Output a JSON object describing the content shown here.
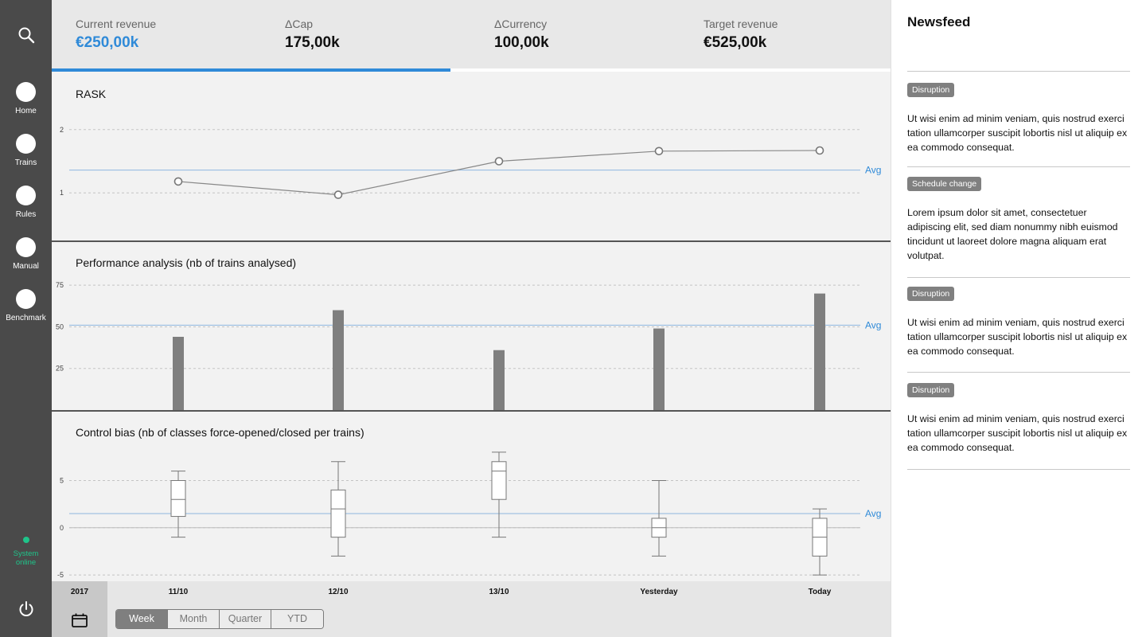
{
  "sidebar": {
    "items": [
      {
        "label": "Home",
        "active": true
      },
      {
        "label": "Trains",
        "active": false
      },
      {
        "label": "Rules",
        "active": false
      },
      {
        "label": "Manual",
        "active": false
      },
      {
        "label": "Benchmark",
        "active": false
      }
    ],
    "status": {
      "line1": "System",
      "line2": "online",
      "color": "#1fc48a"
    }
  },
  "kpis": [
    {
      "label": "Current revenue",
      "value": "€250,00k"
    },
    {
      "label": "ΔCap",
      "value": "175,00k"
    },
    {
      "label": "ΔCurrency",
      "value": "100,00k"
    },
    {
      "label": "Target revenue",
      "value": "€525,00k"
    }
  ],
  "kpi_progress": 0.475,
  "accent_color": "#2f8ad8",
  "chart_data": [
    {
      "type": "line",
      "title": "RASK",
      "categories": [
        "11/10",
        "12/10",
        "13/10",
        "Yesterday",
        "Today"
      ],
      "values": [
        1.18,
        0.97,
        1.5,
        1.66,
        1.67
      ],
      "yticks": [
        1,
        2
      ],
      "ylim": [
        0.65,
        2.35
      ],
      "avg": 1.36,
      "avg_label": "Avg",
      "grid": true
    },
    {
      "type": "bar",
      "title": "Performance analysis (nb of trains analysed)",
      "categories": [
        "11/10",
        "12/10",
        "13/10",
        "Yesterday",
        "Today"
      ],
      "values": [
        44,
        60,
        36,
        49,
        70
      ],
      "yticks": [
        25,
        50,
        75
      ],
      "ylim": [
        0,
        77
      ],
      "avg": 51,
      "avg_label": "Avg",
      "grid": true
    },
    {
      "type": "box",
      "title": "Control bias (nb of classes force-opened/closed per trains)",
      "categories": [
        "11/10",
        "12/10",
        "13/10",
        "Yesterday",
        "Today"
      ],
      "boxes": [
        {
          "min": -1,
          "q1": 1.2,
          "median": 3,
          "q3": 5,
          "max": 6
        },
        {
          "min": -3,
          "q1": -1,
          "median": 2,
          "q3": 4,
          "max": 7
        },
        {
          "min": -1,
          "q1": 3,
          "median": 6,
          "q3": 7,
          "max": 8
        },
        {
          "min": -3,
          "q1": -1,
          "median": 0,
          "q3": 1,
          "max": 5
        },
        {
          "min": -5,
          "q1": -3,
          "median": -1,
          "q3": 1,
          "max": 2
        }
      ],
      "yticks": [
        -5,
        0,
        5
      ],
      "ylim": [
        -5.5,
        8.5
      ],
      "avg": 1.5,
      "avg_label": "Avg",
      "grid": true
    }
  ],
  "xaxis": {
    "year": "2017",
    "labels": [
      "11/10",
      "12/10",
      "13/10",
      "Yesterday",
      "Today"
    ]
  },
  "periods": [
    {
      "label": "Week",
      "selected": true
    },
    {
      "label": "Month",
      "selected": false
    },
    {
      "label": "Quarter",
      "selected": false
    },
    {
      "label": "YTD",
      "selected": false
    }
  ],
  "newsfeed": {
    "title": "Newsfeed",
    "items": [
      {
        "tag": "Disruption",
        "text": "Ut wisi enim ad minim veniam, quis nostrud exerci tation ullamcorper suscipit lobortis nisl ut aliquip ex ea commodo consequat."
      },
      {
        "tag": "Schedule change",
        "text": "Lorem ipsum dolor sit amet, consectetuer adipiscing elit, sed diam nonummy nibh euismod tincidunt ut laoreet dolore magna aliquam erat volutpat."
      },
      {
        "tag": "Disruption",
        "text": "Ut wisi enim ad minim veniam, quis nostrud exerci tation ullamcorper suscipit lobortis nisl ut aliquip ex ea commodo consequat."
      },
      {
        "tag": "Disruption",
        "text": "Ut wisi enim ad minim veniam, quis nostrud exerci tation ullamcorper suscipit lobortis nisl ut aliquip ex ea commodo consequat."
      }
    ]
  }
}
